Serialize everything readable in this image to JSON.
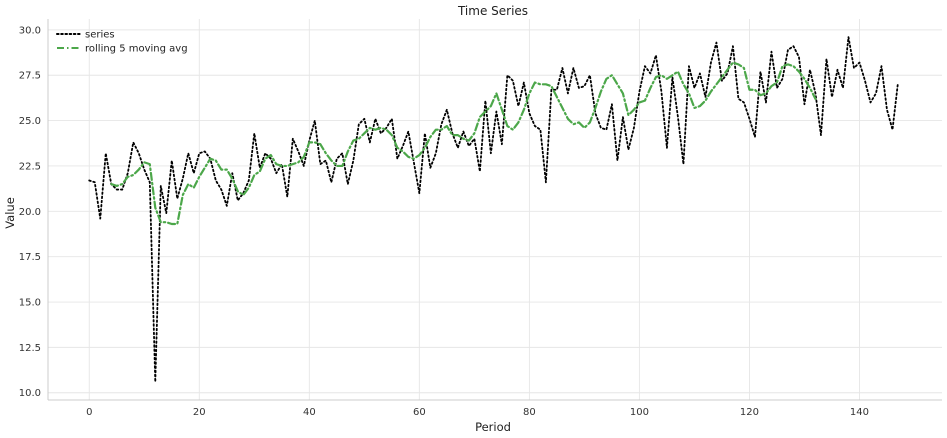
{
  "chart_data": {
    "type": "line",
    "title": "Time Series",
    "xlabel": "Period",
    "ylabel": "Value",
    "xlim": [
      -7.5,
      155
    ],
    "ylim": [
      9.6,
      30.6
    ],
    "xticks": [
      0,
      20,
      40,
      60,
      80,
      100,
      120,
      140
    ],
    "yticks": [
      10.0,
      12.5,
      15.0,
      17.5,
      20.0,
      22.5,
      25.0,
      27.5,
      30.0
    ],
    "grid": true,
    "legend_position": "top-left",
    "series": [
      {
        "name": "series",
        "style": "dotted",
        "color": "#000000",
        "x_start": 0,
        "values": [
          21.7,
          21.6,
          19.6,
          23.2,
          21.5,
          21.2,
          21.2,
          22.1,
          23.8,
          23.2,
          22.3,
          21.6,
          10.6,
          21.4,
          19.9,
          22.8,
          20.7,
          21.8,
          23.2,
          22.1,
          23.2,
          23.3,
          22.9,
          21.7,
          21.2,
          20.3,
          22.1,
          20.6,
          21.0,
          21.7,
          24.3,
          22.4,
          23.2,
          22.9,
          22.1,
          22.6,
          20.8,
          24.0,
          23.3,
          22.5,
          23.9,
          25.0,
          22.6,
          22.8,
          21.6,
          22.9,
          23.2,
          21.5,
          22.8,
          24.8,
          25.1,
          23.8,
          25.1,
          24.3,
          24.6,
          25.1,
          22.9,
          23.6,
          24.4,
          22.7,
          21.0,
          24.3,
          22.4,
          23.2,
          24.8,
          25.6,
          24.3,
          23.5,
          24.4,
          23.6,
          24.0,
          22.2,
          26.1,
          23.2,
          25.5,
          23.7,
          27.5,
          27.2,
          25.8,
          27.1,
          25.4,
          24.7,
          24.5,
          21.6,
          26.7,
          26.7,
          27.9,
          26.5,
          27.9,
          26.8,
          26.9,
          27.5,
          25.4,
          24.6,
          24.5,
          25.9,
          22.8,
          25.2,
          23.4,
          24.6,
          26.6,
          28.0,
          27.6,
          28.6,
          26.6,
          23.5,
          27.4,
          25.2,
          22.6,
          28.0,
          26.8,
          27.6,
          26.3,
          28.2,
          29.3,
          27.2,
          27.6,
          29.1,
          26.2,
          26.0,
          25.1,
          24.1,
          27.7,
          26.0,
          28.8,
          26.8,
          27.3,
          28.9,
          29.1,
          28.5,
          25.9,
          27.8,
          26.5,
          24.2,
          28.4,
          26.3,
          27.8,
          26.8,
          29.6,
          27.9,
          28.2,
          27.2,
          26.0,
          26.5,
          28.0,
          25.6,
          24.5,
          27.1
        ]
      },
      {
        "name": "rolling 5 moving avg",
        "style": "dashdot",
        "color": "#4ca74a",
        "x_start": 4,
        "values": [
          21.5,
          21.4,
          21.5,
          21.9,
          22.0,
          22.3,
          22.7,
          22.6,
          20.2,
          19.4,
          19.4,
          19.3,
          19.3,
          20.9,
          21.5,
          21.3,
          21.9,
          22.4,
          22.9,
          22.8,
          22.3,
          22.3,
          21.8,
          21.1,
          20.9,
          21.3,
          22.0,
          22.2,
          22.9,
          23.1,
          22.6,
          22.5,
          22.5,
          22.6,
          22.7,
          23.0,
          23.8,
          23.8,
          23.7,
          23.2,
          22.8,
          22.5,
          22.5,
          23.3,
          23.9,
          24.0,
          24.3,
          24.6,
          24.5,
          24.6,
          24.5,
          24.2,
          23.5,
          23.3,
          23.0,
          22.9,
          23.1,
          23.5,
          24.1,
          24.5,
          24.5,
          24.7,
          24.2,
          24.2,
          24.0,
          23.9,
          24.3,
          25.2,
          25.5,
          25.8,
          26.5,
          25.6,
          24.7,
          24.5,
          24.9,
          25.6,
          26.5,
          27.1,
          27.0,
          27.0,
          26.9,
          26.3,
          25.7,
          25.1,
          24.8,
          24.9,
          24.6,
          24.9,
          25.7,
          26.6,
          27.3,
          27.5,
          27.0,
          26.5,
          25.3,
          25.6,
          26.0,
          26.1,
          26.8,
          27.4,
          27.5,
          27.3,
          27.5,
          27.7,
          27.0,
          26.5,
          25.7,
          25.8,
          26.1,
          26.6,
          27.0,
          27.4,
          27.8,
          28.2,
          28.1,
          27.9,
          26.7,
          26.7,
          26.4,
          26.5,
          26.9,
          27.1,
          28.0,
          28.1,
          28.0,
          27.7,
          27.3,
          26.8,
          26.2
        ]
      }
    ]
  }
}
